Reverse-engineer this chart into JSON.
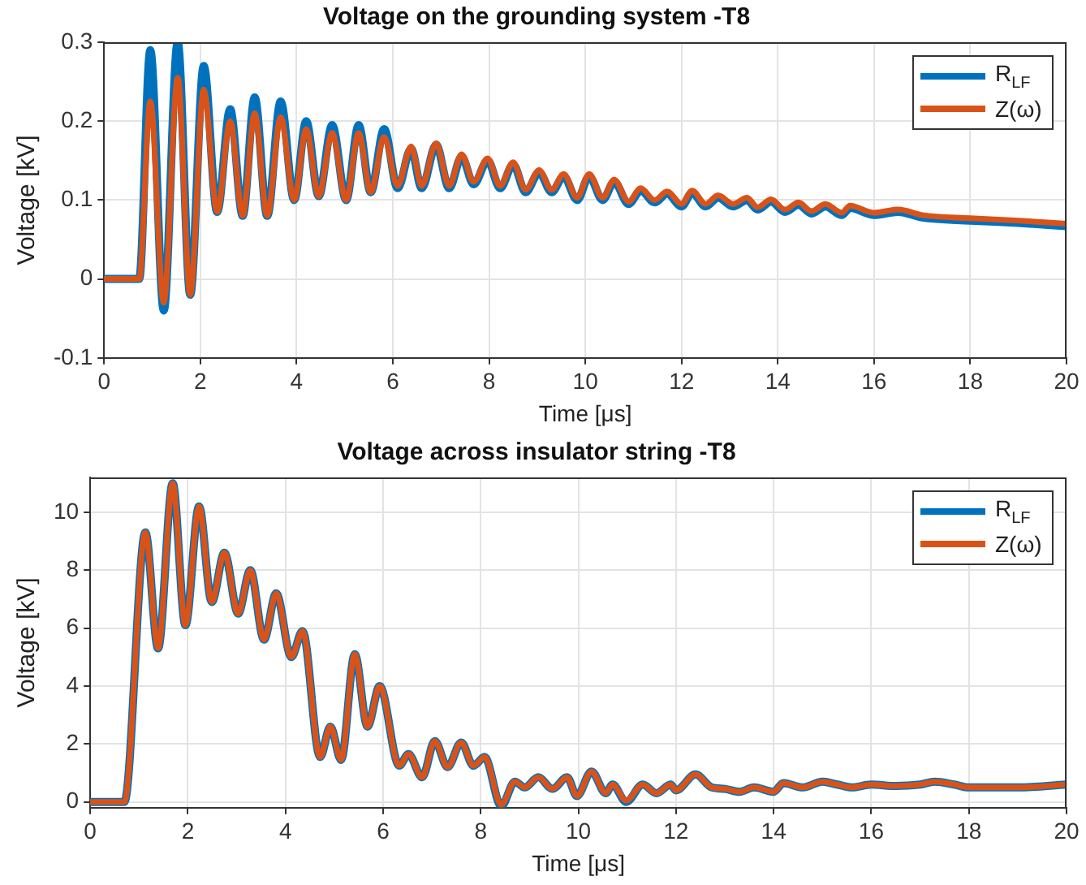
{
  "chart_data": [
    {
      "type": "line",
      "title": "Voltage on the grounding system -T8",
      "xlabel": "Time [μs]",
      "ylabel": "Voltage [kV]",
      "x": [
        0,
        0.73,
        0.96,
        1.24,
        1.53,
        1.79,
        2.07,
        2.35,
        2.62,
        2.88,
        3.13,
        3.39,
        3.67,
        3.95,
        4.2,
        4.46,
        4.74,
        5.03,
        5.29,
        5.54,
        5.82,
        6.1,
        6.38,
        6.6,
        6.9,
        7.17,
        7.43,
        7.68,
        7.97,
        8.23,
        8.5,
        8.76,
        9.04,
        9.3,
        9.55,
        9.83,
        10.08,
        10.36,
        10.6,
        10.9,
        11.15,
        11.44,
        11.7,
        12.0,
        12.22,
        12.5,
        12.76,
        13.07,
        13.36,
        13.58,
        13.86,
        14.15,
        14.43,
        14.7,
        14.99,
        15.33,
        15.5,
        16,
        16.5,
        17,
        18,
        19,
        20
      ],
      "series": [
        {
          "name": "R$_{LF}$",
          "color": "#0072bd",
          "values": [
            0,
            0,
            0.29,
            -0.04,
            0.3,
            -0.02,
            0.27,
            0.085,
            0.215,
            0.08,
            0.23,
            0.08,
            0.225,
            0.1,
            0.2,
            0.105,
            0.195,
            0.1,
            0.195,
            0.11,
            0.19,
            0.115,
            0.165,
            0.115,
            0.17,
            0.115,
            0.155,
            0.12,
            0.15,
            0.115,
            0.145,
            0.11,
            0.135,
            0.11,
            0.13,
            0.1,
            0.13,
            0.1,
            0.123,
            0.095,
            0.112,
            0.097,
            0.108,
            0.092,
            0.109,
            0.092,
            0.103,
            0.092,
            0.1,
            0.088,
            0.098,
            0.085,
            0.094,
            0.083,
            0.092,
            0.081,
            0.09,
            0.081,
            0.085,
            0.078,
            0.074,
            0.071,
            0.067
          ]
        },
        {
          "name": "Z(ω)",
          "color": "#d95319",
          "values": [
            0,
            0,
            0.225,
            -0.03,
            0.255,
            -0.02,
            0.24,
            0.085,
            0.2,
            0.08,
            0.21,
            0.08,
            0.205,
            0.1,
            0.19,
            0.105,
            0.185,
            0.1,
            0.185,
            0.11,
            0.18,
            0.118,
            0.168,
            0.118,
            0.172,
            0.118,
            0.158,
            0.123,
            0.153,
            0.118,
            0.148,
            0.113,
            0.138,
            0.113,
            0.133,
            0.103,
            0.133,
            0.103,
            0.126,
            0.098,
            0.115,
            0.1,
            0.111,
            0.095,
            0.112,
            0.095,
            0.106,
            0.095,
            0.103,
            0.091,
            0.101,
            0.088,
            0.097,
            0.086,
            0.095,
            0.084,
            0.093,
            0.084,
            0.088,
            0.081,
            0.077,
            0.074,
            0.07
          ]
        }
      ],
      "xlim": [
        0,
        20
      ],
      "xticks": [
        0,
        2,
        4,
        6,
        8,
        10,
        12,
        14,
        16,
        18,
        20
      ],
      "ylim": [
        -0.1,
        0.3
      ],
      "yticks": [
        -0.1,
        0,
        0.1,
        0.2,
        0.3
      ],
      "grid": true,
      "legend": "top right",
      "marker": "none",
      "line_style": "solid"
    },
    {
      "type": "line",
      "title": "Voltage across insulator string -T8",
      "xlabel": "Time [μs]",
      "ylabel": "Voltage [kV]",
      "x": [
        0,
        0.7,
        1.13,
        1.39,
        1.69,
        1.95,
        2.23,
        2.49,
        2.75,
        3.03,
        3.28,
        3.56,
        3.81,
        4.12,
        4.35,
        4.71,
        4.92,
        5.14,
        5.42,
        5.68,
        5.93,
        6.33,
        6.52,
        6.8,
        7.06,
        7.32,
        7.6,
        7.85,
        8.08,
        8.42,
        8.7,
        8.9,
        9.18,
        9.47,
        9.77,
        9.97,
        10.27,
        10.56,
        10.7,
        10.98,
        11.32,
        11.6,
        11.89,
        12.0,
        12.4,
        12.73,
        13,
        13.3,
        13.6,
        14,
        14.2,
        14.6,
        15,
        15.3,
        15.6,
        16,
        16.5,
        17,
        17.3,
        17.7,
        18,
        19,
        20
      ],
      "series": [
        {
          "name": "R$_{LF}$",
          "color": "#0072bd",
          "values": [
            0,
            0,
            9.3,
            5.3,
            11.0,
            6.1,
            10.2,
            6.9,
            8.6,
            6.5,
            8.0,
            5.6,
            7.2,
            5.0,
            5.9,
            1.55,
            2.6,
            1.45,
            5.1,
            2.6,
            4.0,
            1.25,
            1.65,
            0.85,
            2.1,
            1.2,
            2.05,
            1.25,
            1.55,
            -0.15,
            0.7,
            0.5,
            0.85,
            0.45,
            0.85,
            0.2,
            1.05,
            0.3,
            0.6,
            0.0,
            0.6,
            0.3,
            0.6,
            0.4,
            0.95,
            0.5,
            0.45,
            0.35,
            0.5,
            0.35,
            0.65,
            0.5,
            0.7,
            0.6,
            0.5,
            0.6,
            0.55,
            0.6,
            0.7,
            0.6,
            0.5,
            0.5,
            0.6
          ]
        },
        {
          "name": "Z(ω)",
          "color": "#d95319",
          "values": [
            0,
            0,
            9.3,
            5.3,
            11.0,
            6.1,
            10.2,
            6.9,
            8.6,
            6.5,
            8.0,
            5.6,
            7.2,
            5.0,
            5.9,
            1.55,
            2.6,
            1.45,
            5.1,
            2.6,
            4.0,
            1.25,
            1.65,
            0.85,
            2.1,
            1.2,
            2.05,
            1.25,
            1.55,
            -0.1,
            0.7,
            0.5,
            0.85,
            0.45,
            0.85,
            0.2,
            1.05,
            0.3,
            0.6,
            0.05,
            0.6,
            0.3,
            0.6,
            0.4,
            0.95,
            0.5,
            0.45,
            0.35,
            0.5,
            0.35,
            0.65,
            0.5,
            0.7,
            0.6,
            0.5,
            0.6,
            0.55,
            0.6,
            0.7,
            0.6,
            0.5,
            0.5,
            0.6
          ]
        }
      ],
      "xlim": [
        0,
        20
      ],
      "xticks": [
        0,
        2,
        4,
        6,
        8,
        10,
        12,
        14,
        16,
        18,
        20
      ],
      "ylim": [
        -0.2,
        11.2
      ],
      "yticks": [
        0,
        2,
        4,
        6,
        8,
        10
      ],
      "grid": true,
      "legend": "top right",
      "marker": "none",
      "line_style": "solid"
    }
  ]
}
